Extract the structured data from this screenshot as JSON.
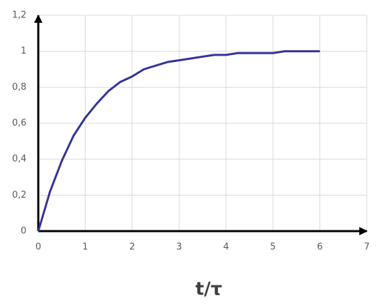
{
  "chart_data": {
    "type": "line",
    "x_label": "t/τ",
    "x": [
      0,
      0.25,
      0.5,
      0.75,
      1,
      1.25,
      1.5,
      1.75,
      2,
      2.25,
      2.5,
      2.75,
      3,
      3.25,
      3.5,
      3.75,
      4,
      4.25,
      4.5,
      4.75,
      5,
      5.25,
      5.5,
      5.75,
      6
    ],
    "series": [
      {
        "color": "#333399",
        "values": [
          0,
          0.22,
          0.39,
          0.53,
          0.63,
          0.71,
          0.78,
          0.83,
          0.86,
          0.9,
          0.92,
          0.94,
          0.95,
          0.96,
          0.97,
          0.98,
          0.98,
          0.99,
          0.99,
          0.99,
          0.99,
          1,
          1,
          1,
          1
        ]
      }
    ],
    "xlim": [
      0,
      7
    ],
    "xticks": [
      0,
      1,
      2,
      3,
      4,
      5,
      6,
      7
    ],
    "ylim": [
      0,
      1.2
    ],
    "yticks": [
      0,
      {
        "value": 0.2,
        "label": "0,2"
      },
      {
        "value": 0.4,
        "label": "0,4"
      },
      {
        "value": 0.6,
        "label": "0,6"
      },
      {
        "value": 0.8,
        "label": "0,8"
      },
      1,
      {
        "value": 1.2,
        "label": "1,2"
      }
    ],
    "grid": true
  }
}
